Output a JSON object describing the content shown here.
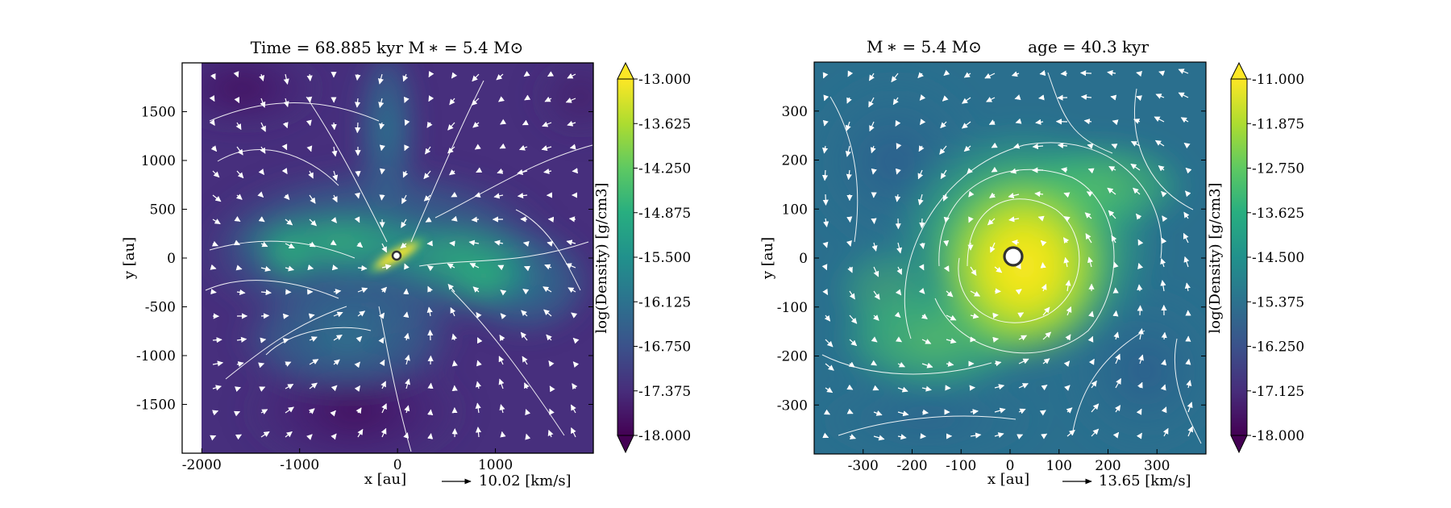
{
  "chart_data": [
    {
      "type": "heatmap",
      "title": "Time = 68.885 kyr    M ∗ = 5.4 M⊙",
      "xlabel": "x [au]",
      "ylabel": "y [au]",
      "xlim": [
        -2200,
        2000
      ],
      "ylim": [
        -2000,
        2000
      ],
      "data_xlim": [
        -2000,
        2000
      ],
      "xticks": [
        -2000,
        -1000,
        0,
        1000
      ],
      "yticks": [
        -1500,
        -1000,
        -500,
        0,
        500,
        1000,
        1500
      ],
      "colorbar": {
        "label": "log(Density) [g/cm3]",
        "range": [
          -18.0,
          -13.0
        ],
        "ticks": [
          "-13.000",
          "-13.625",
          "-14.250",
          "-14.875",
          "-15.500",
          "-16.125",
          "-16.750",
          "-17.375",
          "-18.000"
        ],
        "extend": "both",
        "colormap": "viridis"
      },
      "velocity_key": "10.02 [km/s]",
      "star": {
        "x": 0,
        "y": 0
      }
    },
    {
      "type": "heatmap",
      "title": "M ∗ = 5.4 M⊙         age = 40.3 kyr",
      "xlabel": "x [au]",
      "ylabel": "y [au]",
      "xlim": [
        -400,
        400
      ],
      "ylim": [
        -400,
        400
      ],
      "data_xlim": [
        -400,
        400
      ],
      "xticks": [
        -300,
        -200,
        -100,
        0,
        100,
        200,
        300
      ],
      "yticks": [
        -300,
        -200,
        -100,
        0,
        100,
        200,
        300
      ],
      "colorbar": {
        "label": "log(Density) [g/cm3]",
        "range": [
          -18.0,
          -11.0
        ],
        "ticks": [
          "-11.000",
          "-11.875",
          "-12.750",
          "-13.625",
          "-14.500",
          "-15.375",
          "-16.250",
          "-17.125",
          "-18.000"
        ],
        "extend": "both",
        "colormap": "viridis"
      },
      "velocity_key": "13.65 [km/s]",
      "star": {
        "x": 0,
        "y": 0
      }
    }
  ]
}
